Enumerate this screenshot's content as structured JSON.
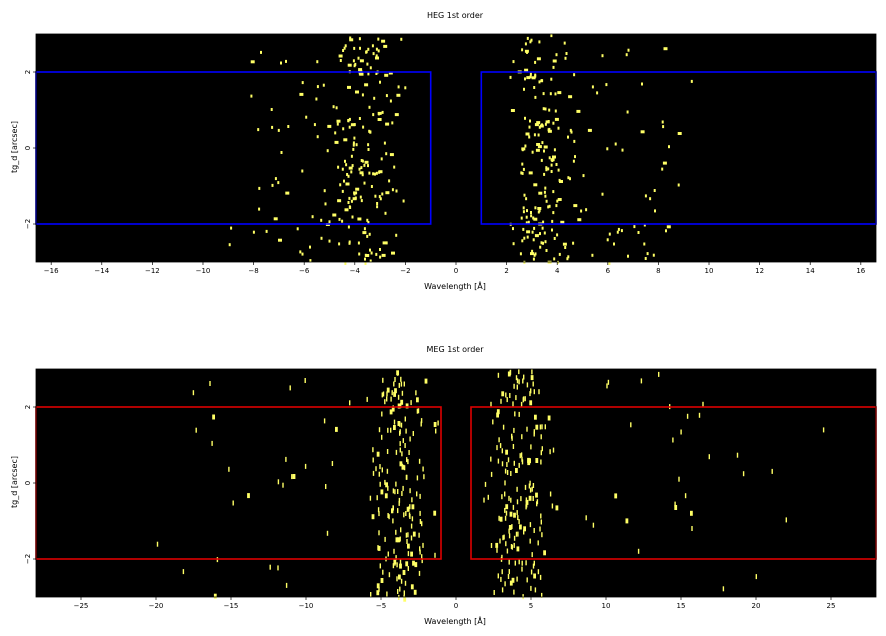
{
  "chart_data": [
    {
      "type": "heatmap",
      "title": "HEG 1st order",
      "xlabel": "Wavelength [Å]",
      "ylabel": "tg_d [arcsec]",
      "xlim": [
        -16.6,
        16.6
      ],
      "ylim": [
        -3,
        3
      ],
      "xticks": [
        -16,
        -14,
        -12,
        -10,
        -8,
        -6,
        -4,
        -2,
        0,
        2,
        4,
        6,
        8,
        10,
        12,
        14,
        16
      ],
      "xtick_labels": [
        "−16",
        "−14",
        "−12",
        "−10",
        "−8",
        "−6",
        "−4",
        "−2",
        "0",
        "2",
        "4",
        "6",
        "8",
        "10",
        "12",
        "14",
        "16"
      ],
      "yticks": [
        -2,
        0,
        2
      ],
      "ytick_labels": [
        "−2",
        "0",
        "2"
      ],
      "background_color": "#000000",
      "event_color": "#ffff66",
      "region_color": "#0000ff",
      "regions": [
        {
          "x": [
            -16.6,
            -1.0
          ],
          "y": [
            -2.0,
            2.0
          ]
        },
        {
          "x": [
            1.0,
            16.6
          ],
          "y": [
            -2.0,
            2.0
          ]
        }
      ],
      "event_density": [
        {
          "center": -3.7,
          "width": 1.5,
          "count": 170
        },
        {
          "center": 3.3,
          "width": 1.3,
          "count": 170
        },
        {
          "center": -6.0,
          "width": 3.5,
          "count": 60
        },
        {
          "center": 6.5,
          "width": 3.5,
          "count": 60
        }
      ],
      "grid": false,
      "legend": "none"
    },
    {
      "type": "heatmap",
      "title": "MEG 1st order",
      "xlabel": "Wavelength [Å]",
      "ylabel": "tg_d [arcsec]",
      "xlim": [
        -28,
        28
      ],
      "ylim": [
        -3,
        3
      ],
      "xticks": [
        -25,
        -20,
        -15,
        -10,
        -5,
        0,
        5,
        10,
        15,
        20,
        25
      ],
      "xtick_labels": [
        "−25",
        "−20",
        "−15",
        "−10",
        "−5",
        "0",
        "5",
        "10",
        "15",
        "20",
        "25"
      ],
      "yticks": [
        -2,
        0,
        2
      ],
      "ytick_labels": [
        "−2",
        "0",
        "2"
      ],
      "background_color": "#000000",
      "event_color": "#ffff66",
      "region_color": "#dd0000",
      "regions": [
        {
          "x": [
            -28,
            -1.0
          ],
          "y": [
            -2.0,
            2.0
          ]
        },
        {
          "x": [
            1.0,
            28
          ],
          "y": [
            -2.0,
            2.0
          ]
        }
      ],
      "event_density": [
        {
          "center": -3.8,
          "width": 2.2,
          "count": 190
        },
        {
          "center": 4.0,
          "width": 2.2,
          "count": 190
        },
        {
          "center": -12.0,
          "width": 8.0,
          "count": 30
        },
        {
          "center": 14.0,
          "width": 8.0,
          "count": 30
        }
      ],
      "grid": false,
      "legend": "none"
    }
  ]
}
